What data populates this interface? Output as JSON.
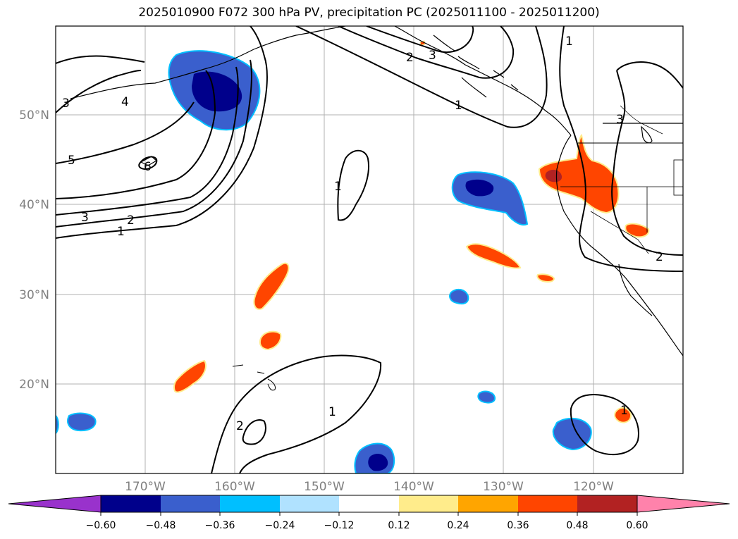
{
  "title": "2025010900 F072 300 hPa PV, precipitation PC (2025011100 - 2025011200)",
  "map": {
    "lon_ticks": [
      "170°W",
      "160°W",
      "150°W",
      "140°W",
      "130°W",
      "120°W"
    ],
    "lat_ticks": [
      "50°N",
      "40°N",
      "30°N",
      "20°N"
    ],
    "contour_labels": [
      "3",
      "4",
      "5",
      "6",
      "3",
      "2",
      "1",
      "2",
      "3",
      "1",
      "1",
      "1",
      "3",
      "2",
      "1",
      "2",
      "1"
    ]
  },
  "colorbar": {
    "tick_labels": [
      "−0.60",
      "−0.48",
      "−0.36",
      "−0.24",
      "−0.12",
      "0.12",
      "0.24",
      "0.36",
      "0.48",
      "0.60"
    ],
    "colors": [
      "#9932cc",
      "#00008b",
      "#3a5fcd",
      "#00bfff",
      "#b0e2ff",
      "#ffffff",
      "#ffec8b",
      "#ffa500",
      "#ff4500",
      "#b22222",
      "#ff82ab"
    ]
  }
}
